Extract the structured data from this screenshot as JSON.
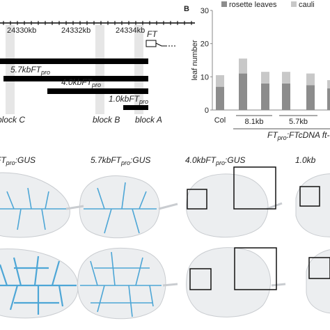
{
  "panel_a": {
    "coordinates": [
      "24330kb",
      "24332kb",
      "24334kb"
    ],
    "gene": "FT",
    "constructs": [
      {
        "pre": "5.7kbFT",
        "sub": "pro"
      },
      {
        "pre": "4.0kbFT",
        "sub": "pro"
      },
      {
        "pre": "1.0kbFT",
        "sub": "pro"
      }
    ],
    "blocks": [
      "block C",
      "block B",
      "block A"
    ]
  },
  "panel_b_label": "B",
  "chart_data": {
    "type": "bar",
    "stacked": true,
    "y_label": "leaf number",
    "categories": [
      "Col",
      null,
      null,
      null,
      null,
      null
    ],
    "groups": [
      "8.1kb",
      "5.7kb"
    ],
    "x_label": {
      "pre": "FT",
      "sub": "pro",
      "post": ":FTcDNA ft-"
    },
    "series": [
      {
        "name": "rosette leaves",
        "color": "#8c8c8c",
        "values": [
          7,
          11,
          8,
          8,
          7.5,
          6.5
        ]
      },
      {
        "name": "cauli",
        "color": "#c8c8c8",
        "values": [
          3.5,
          4.5,
          3.5,
          3.5,
          3.5,
          2.5
        ]
      }
    ],
    "ylim": [
      0,
      30
    ],
    "yticks": [
      0,
      10,
      20,
      30
    ]
  },
  "panel_c": {
    "labels": [
      {
        "pre": "FT",
        "sub": "pro",
        "post": ":GUS"
      },
      {
        "pre": "5.7kbFT",
        "sub": "pro",
        "post": ":GUS"
      },
      {
        "pre": "4.0kbFT",
        "sub": "pro",
        "post": ":GUS"
      },
      {
        "pre": "1.0kb"
      }
    ]
  }
}
